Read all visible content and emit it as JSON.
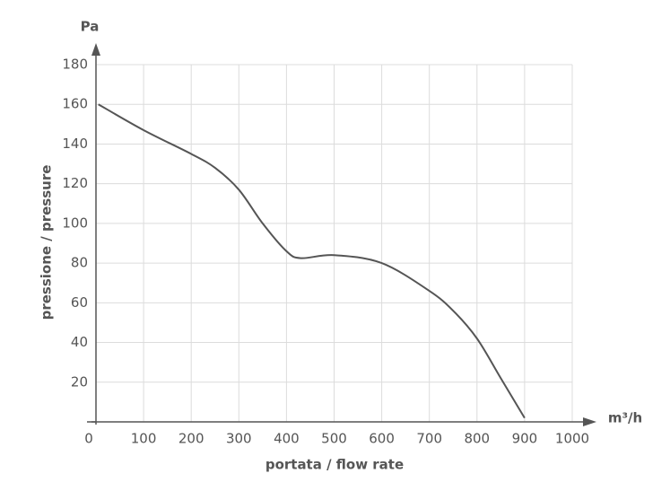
{
  "chart_data": {
    "type": "line",
    "x_unit": "m³/h",
    "y_unit": "Pa",
    "xlabel": "portata / flow rate",
    "ylabel": "pressione / pressure",
    "x": [
      5,
      100,
      200,
      250,
      300,
      350,
      400,
      430,
      500,
      600,
      700,
      750,
      800,
      850,
      900
    ],
    "series": [
      {
        "color": "#555555",
        "values": [
          160,
          147,
          135,
          128,
          117,
          100,
          86,
          82.5,
          84,
          80,
          66,
          56,
          42,
          22,
          2
        ]
      }
    ],
    "xlim": [
      0,
      1000
    ],
    "xticks": [
      0,
      100,
      200,
      300,
      400,
      500,
      600,
      700,
      800,
      900,
      1000
    ],
    "ylim": [
      0,
      180
    ],
    "yticks": [
      20,
      40,
      60,
      80,
      100,
      120,
      140,
      160,
      180
    ],
    "grid": true
  }
}
